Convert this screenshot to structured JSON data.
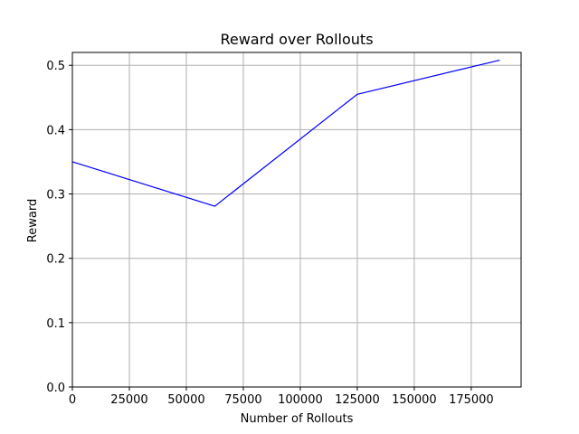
{
  "chart_data": {
    "type": "line",
    "title": "Reward over Rollouts",
    "xlabel": "Number of Rollouts",
    "ylabel": "Reward",
    "xlim": [
      0,
      196875
    ],
    "ylim": [
      0.0,
      0.52
    ],
    "xticks": [
      0,
      25000,
      50000,
      75000,
      100000,
      125000,
      150000,
      175000
    ],
    "xtick_labels": [
      "0",
      "25000",
      "50000",
      "75000",
      "100000",
      "125000",
      "150000",
      "175000"
    ],
    "yticks": [
      0.0,
      0.1,
      0.2,
      0.3,
      0.4,
      0.5
    ],
    "ytick_labels": [
      "0.0",
      "0.1",
      "0.2",
      "0.3",
      "0.4",
      "0.5"
    ],
    "grid": true,
    "series": [
      {
        "color": "#0000ff",
        "x": [
          0,
          62500,
          125000,
          187500
        ],
        "y": [
          0.35,
          0.281,
          0.455,
          0.508
        ]
      }
    ]
  }
}
